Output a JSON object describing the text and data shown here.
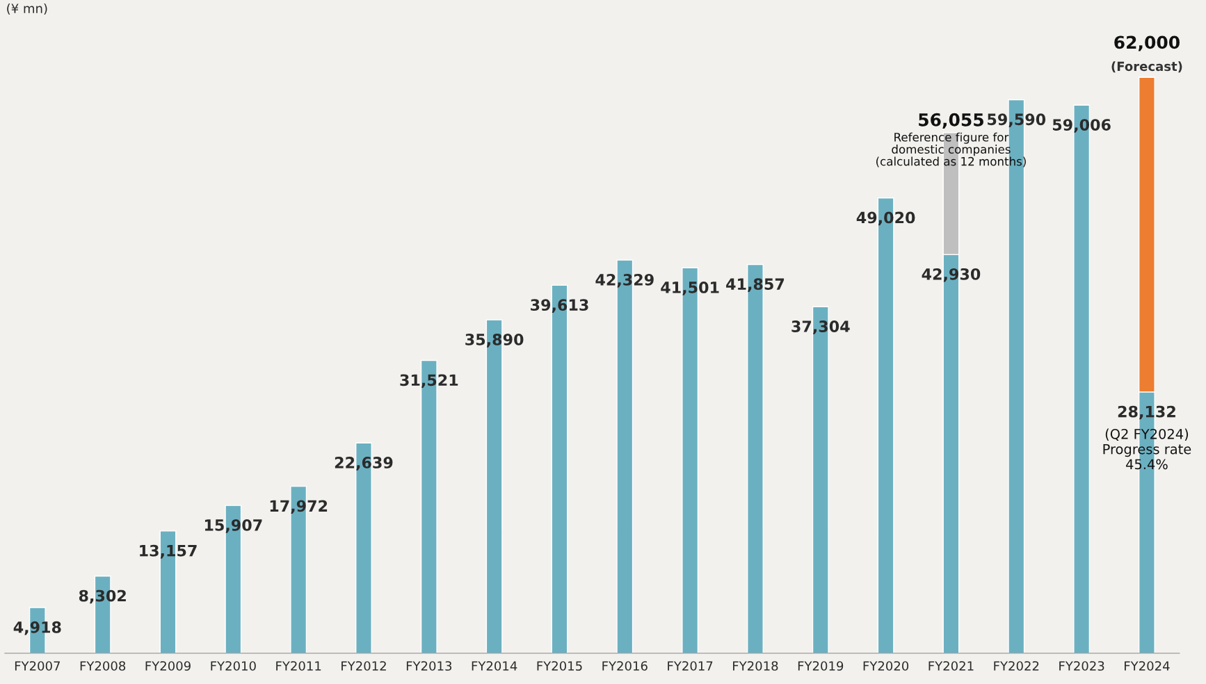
{
  "chart_data": {
    "type": "bar",
    "stacked": true,
    "categories": [
      "FY2007",
      "FY2008",
      "FY2009",
      "FY2010",
      "FY2011",
      "FY2012",
      "FY2013",
      "FY2014",
      "FY2015",
      "FY2016",
      "FY2017",
      "FY2018",
      "FY2019",
      "FY2020",
      "FY2021",
      "FY2022",
      "FY2023",
      "FY2024"
    ],
    "series": [
      {
        "color": "#6bb0c1",
        "values": [
          4918,
          8302,
          13157,
          15907,
          17972,
          22639,
          31521,
          35890,
          39613,
          42329,
          41501,
          41857,
          37304,
          49020,
          42930,
          59590,
          59006,
          28132
        ],
        "value_labels": [
          "4,918",
          "8,302",
          "13,157",
          "15,907",
          "17,972",
          "22,639",
          "31,521",
          "35,890",
          "39,613",
          "42,329",
          "41,501",
          "41,857",
          "37,304",
          "49,020",
          "42,930",
          "59,590",
          "59,006",
          "28,132"
        ]
      },
      {
        "color": "#bfbfbf",
        "values": [
          null,
          null,
          null,
          null,
          null,
          null,
          null,
          null,
          null,
          null,
          null,
          null,
          null,
          null,
          13125,
          null,
          null,
          null
        ]
      },
      {
        "color": "#ed7d31",
        "values": [
          null,
          null,
          null,
          null,
          null,
          null,
          null,
          null,
          null,
          null,
          null,
          null,
          null,
          null,
          null,
          null,
          null,
          33868
        ]
      }
    ],
    "totals": [
      null,
      null,
      null,
      null,
      null,
      null,
      null,
      null,
      null,
      null,
      null,
      null,
      null,
      null,
      "56,055",
      null,
      null,
      "62,000"
    ],
    "annotations": [
      "(¥ mn)",
      {
        "text": "Reference figure for\ndomestic companies\n(calculated as 12 months)",
        "x": "FY2021",
        "y": 56055
      },
      {
        "text": "(Forecast)",
        "x": "FY2024",
        "y": 62000
      },
      {
        "text": "(Q2 FY2024)\nProgress rate\n45.4%",
        "x": "FY2024",
        "y": 28132
      }
    ],
    "legend": false,
    "grid": false
  }
}
